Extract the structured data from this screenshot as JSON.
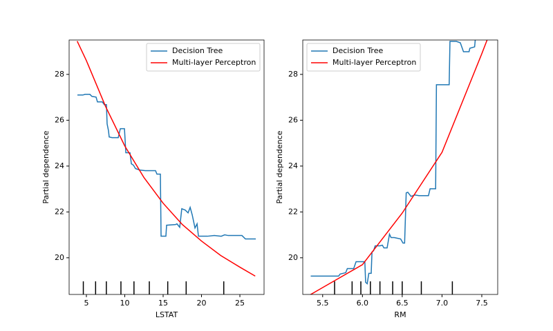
{
  "chart_data": [
    {
      "type": "line",
      "xlabel": "LSTAT",
      "ylabel": "Partial dependence",
      "xlim": [
        2.75,
        28.15
      ],
      "ylim": [
        18.4,
        29.5
      ],
      "xticks": [
        5,
        10,
        15,
        20,
        25
      ],
      "yticks": [
        20,
        22,
        24,
        26,
        28
      ],
      "legend": "upper right",
      "deciles": [
        4.6,
        6.2,
        7.6,
        9.5,
        11.2,
        13.2,
        15.6,
        18.0,
        22.9
      ],
      "series": [
        {
          "name": "Decision Tree",
          "color": "#1f77b4",
          "x": [
            3.83,
            4.55,
            4.82,
            5.45,
            5.72,
            6.26,
            6.44,
            7.07,
            7.34,
            7.61,
            7.7,
            7.88,
            7.97,
            8.34,
            9.15,
            9.42,
            9.96,
            10.14,
            10.68,
            10.86,
            11.13,
            11.4,
            11.94,
            12.66,
            14.01,
            14.19,
            14.64,
            14.73,
            15.36,
            15.45,
            16.62,
            16.8,
            17.16,
            17.43,
            17.88,
            18.25,
            18.52,
            18.79,
            19.15,
            19.42,
            19.6,
            20.77,
            21.67,
            22.57,
            23.02,
            23.47,
            25.27,
            25.72,
            27.07
          ],
          "values": [
            27.1,
            27.1,
            27.13,
            27.13,
            27.04,
            27.01,
            26.8,
            26.8,
            26.68,
            26.68,
            25.84,
            25.54,
            25.27,
            25.24,
            25.24,
            25.63,
            25.63,
            24.58,
            24.58,
            24.1,
            24.04,
            23.89,
            23.83,
            23.8,
            23.8,
            23.65,
            23.65,
            20.94,
            20.94,
            21.42,
            21.45,
            21.48,
            21.33,
            22.14,
            22.08,
            21.96,
            22.2,
            21.87,
            21.3,
            21.48,
            20.94,
            20.94,
            20.97,
            20.94,
            21.0,
            20.97,
            20.97,
            20.82,
            20.82
          ]
        },
        {
          "name": "Multi-layer Perceptron",
          "color": "#ff0000",
          "x": [
            3.8,
            5,
            7.5,
            10,
            12.5,
            15,
            17.5,
            20,
            22.5,
            25,
            27
          ],
          "values": [
            29.45,
            28.6,
            26.6,
            24.88,
            23.5,
            22.38,
            21.45,
            20.73,
            20.1,
            19.59,
            19.2
          ]
        }
      ]
    },
    {
      "type": "line",
      "xlabel": "RM",
      "ylabel": "Partial dependence",
      "xlim": [
        5.25,
        7.7
      ],
      "ylim": [
        18.4,
        29.5
      ],
      "xticks": [
        5.5,
        {
          "value": 6,
          "label": "6.0"
        },
        6.5,
        {
          "value": 7,
          "label": "7.0"
        },
        7.5
      ],
      "yticks": [
        20,
        22,
        24,
        26,
        28
      ],
      "legend": "upper left",
      "deciles": [
        5.65,
        5.87,
        5.98,
        6.1,
        6.22,
        6.38,
        6.5,
        6.74,
        7.13
      ],
      "series": [
        {
          "name": "Decision Tree",
          "color": "#1f77b4",
          "x": [
            5.35,
            5.53,
            5.7,
            5.72,
            5.79,
            5.81,
            5.89,
            5.92,
            6.03,
            6.04,
            6.06,
            6.08,
            6.11,
            6.12,
            6.14,
            6.16,
            6.22,
            6.25,
            6.27,
            6.31,
            6.34,
            6.36,
            6.4,
            6.48,
            6.51,
            6.53,
            6.55,
            6.57,
            6.61,
            6.66,
            6.71,
            6.83,
            6.85,
            6.92,
            6.93,
            7.09,
            7.1,
            7.18,
            7.23,
            7.27,
            7.34,
            7.35,
            7.41,
            7.42
          ],
          "values": [
            19.2,
            19.2,
            19.2,
            19.29,
            19.35,
            19.53,
            19.53,
            19.83,
            19.83,
            18.93,
            18.87,
            19.32,
            19.32,
            20.25,
            20.31,
            20.52,
            20.52,
            20.55,
            20.43,
            20.43,
            21.03,
            20.88,
            20.88,
            20.82,
            20.64,
            20.64,
            22.83,
            22.86,
            22.68,
            22.74,
            22.71,
            22.71,
            23.01,
            23.01,
            27.55,
            27.55,
            29.44,
            29.44,
            29.38,
            28.99,
            28.99,
            29.14,
            29.2,
            29.59
          ]
        },
        {
          "name": "Multi-layer Perceptron",
          "color": "#ff0000",
          "x": [
            5.3,
            5.5,
            6.0,
            6.5,
            7.0,
            7.5,
            7.6
          ],
          "values": [
            18.3,
            18.7,
            19.7,
            21.95,
            24.6,
            28.9,
            29.8
          ]
        }
      ]
    }
  ]
}
